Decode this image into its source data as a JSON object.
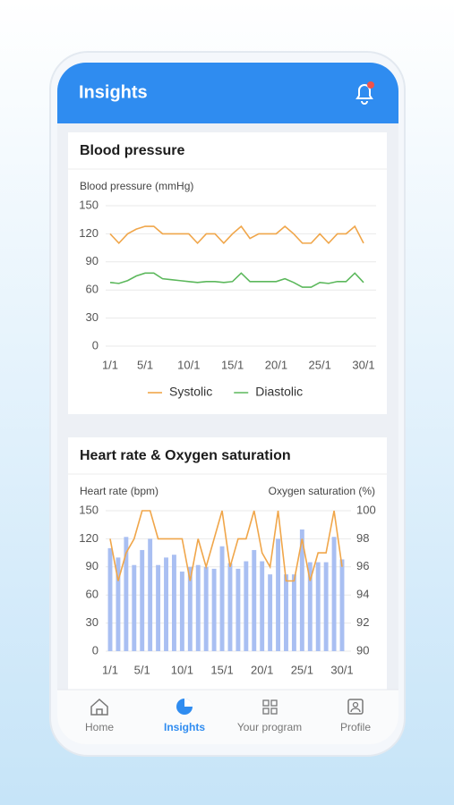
{
  "header": {
    "title": "Insights"
  },
  "chart_data": [
    {
      "type": "line",
      "title": "Blood pressure",
      "y_label": "Blood pressure (mmHg)",
      "categories": [
        "1/1",
        null,
        null,
        null,
        "5/1",
        null,
        null,
        null,
        null,
        "10/1",
        null,
        null,
        null,
        null,
        "15/1",
        null,
        null,
        null,
        null,
        "20/1",
        null,
        null,
        null,
        null,
        "25/1",
        null,
        null,
        null,
        null,
        "30/1"
      ],
      "series": [
        {
          "name": "Systolic",
          "color": "#f0a64a",
          "values": [
            120,
            110,
            120,
            125,
            128,
            128,
            120,
            120,
            120,
            120,
            110,
            120,
            120,
            110,
            120,
            128,
            115,
            120,
            120,
            120,
            128,
            120,
            110,
            110,
            120,
            110,
            120,
            120,
            128,
            110
          ]
        },
        {
          "name": "Diastolic",
          "color": "#5cb85c",
          "values": [
            68,
            67,
            70,
            75,
            78,
            78,
            72,
            71,
            70,
            69,
            68,
            69,
            69,
            68,
            69,
            78,
            69,
            69,
            69,
            69,
            72,
            68,
            63,
            63,
            68,
            67,
            69,
            69,
            78,
            68
          ]
        }
      ],
      "ylim": [
        0,
        150
      ],
      "yticks": [
        0,
        30,
        60,
        90,
        120,
        150
      ],
      "grid": true,
      "legend": "bottom"
    },
    {
      "type": "bar",
      "title": "Heart rate & Oxygen saturation",
      "y_label": "Heart rate (bpm)",
      "y2_label": "Oxygen saturation (%)",
      "categories": [
        "1/1",
        null,
        null,
        null,
        "5/1",
        null,
        null,
        null,
        null,
        "10/1",
        null,
        null,
        null,
        null,
        "15/1",
        null,
        null,
        null,
        null,
        "20/1",
        null,
        null,
        null,
        null,
        "25/1",
        null,
        null,
        null,
        null,
        "30/1"
      ],
      "series": [
        {
          "type": "bar",
          "color": "#a9bff2",
          "values": [
            110,
            100,
            122,
            92,
            108,
            120,
            92,
            100,
            103,
            85,
            90,
            92,
            90,
            88,
            112,
            94,
            88,
            96,
            108,
            96,
            82,
            120,
            82,
            82,
            130,
            95,
            95,
            95,
            122,
            98
          ]
        },
        {
          "type": "line",
          "axis": "y2",
          "color": "#f0a64a",
          "values": [
            98,
            95,
            97,
            98,
            100,
            100,
            98,
            98,
            98,
            98,
            95,
            98,
            96,
            98,
            100,
            96,
            98,
            98,
            100,
            97,
            96,
            100,
            95,
            95,
            98,
            95,
            97,
            97,
            100,
            96
          ]
        }
      ],
      "ylim": [
        0,
        150
      ],
      "yticks": [
        0,
        30,
        60,
        90,
        120,
        150
      ],
      "y2lim": [
        90,
        100
      ],
      "y2ticks": [
        90,
        92,
        94,
        96,
        98,
        100
      ],
      "grid": true
    }
  ],
  "nav": {
    "items": [
      "Home",
      "Insights",
      "Your program",
      "Profile"
    ],
    "active": 1
  }
}
